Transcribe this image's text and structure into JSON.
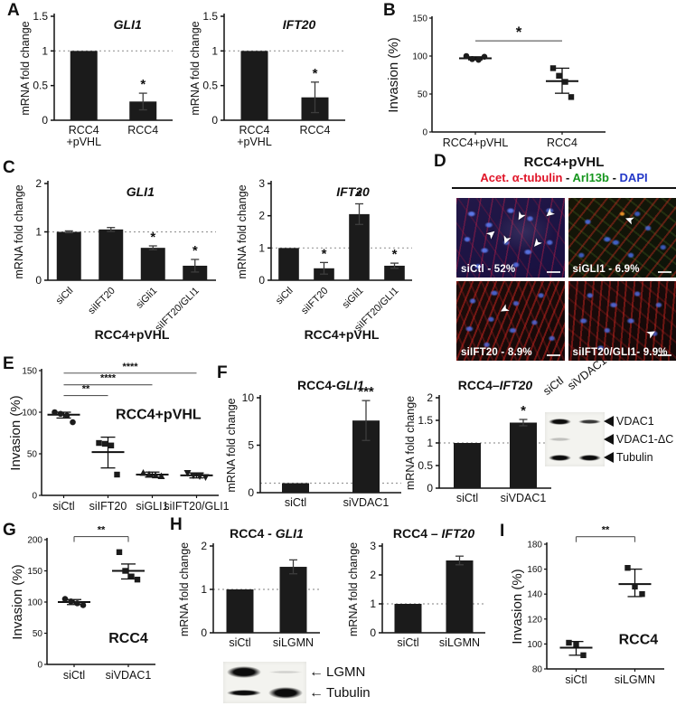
{
  "panels": {
    "A": "A",
    "B": "B",
    "C": "C",
    "D": "D",
    "E": "E",
    "F": "F",
    "G": "G",
    "H": "H",
    "I": "I"
  },
  "icons": {
    "arrowhead": "➤",
    "left_arrow": "←"
  },
  "panelD": {
    "title": "RCC4+pVHL",
    "separator": " - ",
    "legend": [
      {
        "text": "Acet. α-tubulin",
        "color": "#e01428"
      },
      {
        "text": "Arl13b",
        "color": "#15961e"
      },
      {
        "text": "DAPI",
        "color": "#2338c8"
      }
    ],
    "images": [
      {
        "label": "siCtl - 52%"
      },
      {
        "label": "siGLI1 - 6.9%"
      },
      {
        "label": "siIFT20 - 8.9%"
      },
      {
        "label": "siIFT20/GLI1- 9.9%"
      }
    ]
  },
  "blots": {
    "F": {
      "lanes": [
        "siCtl",
        "siVDAC1"
      ],
      "bands": [
        {
          "label": "VDAC1",
          "lanes": [
            "strong",
            "medium"
          ]
        },
        {
          "label": "VDAC1-ΔC",
          "lanes": [
            "faint",
            "none"
          ]
        },
        {
          "label": "Tubulin",
          "lanes": [
            "strong",
            "strong"
          ]
        }
      ]
    },
    "H": {
      "bands": [
        {
          "label": "LGMN",
          "lanes": [
            "heavy",
            "vfaint"
          ]
        },
        {
          "label": "Tubulin",
          "lanes": [
            "strong",
            "heavy"
          ]
        }
      ]
    }
  },
  "chart_data": [
    {
      "id": "A1",
      "panel": "A",
      "type": "bar",
      "title": "GLI1",
      "title_italic": true,
      "title_pos": "inner",
      "title_x": 0.62,
      "ylabel": "mRNA fold change",
      "ylim": [
        0,
        1.5
      ],
      "yticks": [
        0,
        0.5,
        1,
        1.5
      ],
      "ref_line": 1,
      "categories": [
        "RCC4\n+pVHL",
        "RCC4"
      ],
      "values": [
        1.0,
        0.27
      ],
      "errors": [
        0,
        0.12
      ],
      "sig": [
        "",
        "*"
      ]
    },
    {
      "id": "A2",
      "panel": "A",
      "type": "bar",
      "title": "IFT20",
      "title_italic": true,
      "title_pos": "inner",
      "title_x": 0.62,
      "ylabel": "mRNA fold change",
      "ylim": [
        0,
        1.5
      ],
      "yticks": [
        0,
        0.5,
        1,
        1.5
      ],
      "ref_line": 1,
      "categories": [
        "RCC4\n+pVHL",
        "RCC4"
      ],
      "values": [
        1.0,
        0.33
      ],
      "errors": [
        0,
        0.22
      ],
      "sig": [
        "",
        "*"
      ]
    },
    {
      "id": "B",
      "panel": "B",
      "type": "scatter",
      "ylabel": "Invasion (%)",
      "ylim": [
        0,
        150
      ],
      "yticks": [
        0,
        50,
        100,
        150
      ],
      "ml": 50,
      "categories": [
        "RCC4+pVHL",
        "RCC4"
      ],
      "groups": [
        {
          "marker": "circle",
          "points": [
            100,
            96,
            95,
            99
          ],
          "mean": 97,
          "lo": 95,
          "hi": 99
        },
        {
          "marker": "square",
          "points": [
            84,
            74,
            66,
            46
          ],
          "mean": 67,
          "lo": 51,
          "hi": 84
        }
      ],
      "brackets": [
        {
          "from": 0,
          "to": 1,
          "y": 120,
          "label": "*",
          "style": "line",
          "label_size": 17
        }
      ]
    },
    {
      "id": "C1",
      "panel": "C",
      "type": "bar",
      "title": "GLI1",
      "title_italic": true,
      "title_pos": "inner",
      "title_x": 0.55,
      "ylabel": "mRNA fold change",
      "ylim": [
        0,
        2
      ],
      "yticks": [
        0,
        1,
        2
      ],
      "ref_line": 1,
      "rotate_xticks": true,
      "xlabel": "RCC4+pVHL",
      "categories": [
        "siCtl",
        "siIFT20",
        "siGli1",
        "siIFT20/GLI1"
      ],
      "values": [
        1.0,
        1.05,
        0.67,
        0.3
      ],
      "errors": [
        0.02,
        0.04,
        0.04,
        0.13
      ],
      "sig": [
        "",
        "",
        "*",
        "*"
      ]
    },
    {
      "id": "C2",
      "panel": "C",
      "type": "bar",
      "title": "IFT20",
      "title_italic": true,
      "title_pos": "inner",
      "title_x": 0.58,
      "ylabel": "mRNA fold change",
      "ylim": [
        0,
        3
      ],
      "yticks": [
        0,
        1,
        2,
        3
      ],
      "ref_line": 1,
      "rotate_xticks": true,
      "xlabel": "RCC4+pVHL",
      "categories": [
        "siCtl",
        "siIFT20",
        "siGli1",
        "siIFT20/GLI1"
      ],
      "values": [
        1.0,
        0.37,
        2.05,
        0.45
      ],
      "errors": [
        0,
        0.18,
        0.32,
        0.08
      ],
      "sig": [
        "",
        "*",
        "*",
        "*"
      ]
    },
    {
      "id": "E",
      "panel": "E",
      "type": "scatter",
      "ylabel": "Invasion (%)",
      "ylim": [
        0,
        150
      ],
      "yticks": [
        0,
        50,
        100,
        150
      ],
      "ml": 36,
      "categories": [
        "siCtl",
        "siIFT20",
        "siGLI1",
        "siIFT20/GLI1"
      ],
      "groups": [
        {
          "marker": "circle",
          "points": [
            100,
            98,
            96,
            88
          ],
          "mean": 97,
          "lo": 93,
          "hi": 100
        },
        {
          "marker": "square",
          "points": [
            63,
            62,
            60,
            25
          ],
          "mean": 52,
          "lo": 33,
          "hi": 70
        },
        {
          "marker": "triangle",
          "points": [
            27,
            25,
            24,
            23
          ],
          "mean": 25,
          "lo": 22,
          "hi": 28
        },
        {
          "marker": "triangle-down",
          "points": [
            27,
            24,
            23,
            22
          ],
          "mean": 24,
          "lo": 21,
          "hi": 27
        }
      ],
      "brackets": [
        {
          "from": 0,
          "to": 1,
          "y": 120,
          "label": "**"
        },
        {
          "from": 0,
          "to": 2,
          "y": 133,
          "label": "****"
        },
        {
          "from": 0,
          "to": 3,
          "y": 147,
          "label": "****"
        }
      ],
      "inner_label": {
        "text": "RCC4+pVHL",
        "x": 0.66,
        "y": 92
      }
    },
    {
      "id": "F1",
      "panel": "F",
      "type": "bar",
      "title_parts": [
        {
          "text": "RCC4-"
        },
        {
          "text": "GLI1",
          "italic": true
        }
      ],
      "title_pos": "top",
      "ylabel": "mRNA fold change",
      "ylim": [
        0,
        10
      ],
      "yticks": [
        0,
        5,
        10
      ],
      "ref_line": 1,
      "categories": [
        "siCtl",
        "siVDAC1"
      ],
      "values": [
        1.0,
        7.6
      ],
      "errors": [
        0,
        2.1
      ],
      "sig": [
        "",
        "***"
      ]
    },
    {
      "id": "F2",
      "panel": "F",
      "type": "bar",
      "title_parts": [
        {
          "text": "RCC4–"
        },
        {
          "text": "IFT20",
          "italic": true
        }
      ],
      "title_pos": "top",
      "ylabel": "mRNA fold change",
      "ylim": [
        0,
        2
      ],
      "yticks": [
        0,
        0.5,
        1,
        1.5,
        2
      ],
      "ref_line": 1,
      "categories": [
        "siCtl",
        "siVDAC1"
      ],
      "values": [
        1.0,
        1.45
      ],
      "errors": [
        0,
        0.07
      ],
      "sig": [
        "",
        "*"
      ]
    },
    {
      "id": "G",
      "panel": "G",
      "type": "scatter",
      "ylabel": "Invasion (%)",
      "ylim": [
        0,
        200
      ],
      "yticks": [
        0,
        50,
        100,
        150,
        200
      ],
      "ml": 40,
      "categories": [
        "siCtl",
        "siVDAC1"
      ],
      "groups": [
        {
          "marker": "circle",
          "points": [
            105,
            101,
            98,
            95
          ],
          "mean": 100,
          "lo": 96,
          "hi": 104
        },
        {
          "marker": "square",
          "points": [
            180,
            150,
            141,
            136
          ],
          "mean": 150,
          "lo": 137,
          "hi": 161
        }
      ],
      "brackets": [
        {
          "from": 0,
          "to": 1,
          "y": 205,
          "label": "**",
          "style": "bracket"
        }
      ],
      "inner_label": {
        "text": "RCC4",
        "x": 0.75,
        "y": 35
      }
    },
    {
      "id": "H1",
      "panel": "H",
      "type": "bar",
      "title_parts": [
        {
          "text": "RCC4 - "
        },
        {
          "text": "GLI1",
          "italic": true
        }
      ],
      "title_pos": "top",
      "ylabel": "mRNA fold change",
      "ylim": [
        0,
        2
      ],
      "yticks": [
        0,
        1,
        2
      ],
      "ref_line": 1,
      "categories": [
        "siCtl",
        "siLGMN"
      ],
      "values": [
        1.0,
        1.52
      ],
      "errors": [
        0,
        0.16
      ],
      "sig": [
        "",
        ""
      ]
    },
    {
      "id": "H2",
      "panel": "H",
      "type": "bar",
      "title_parts": [
        {
          "text": "RCC4 – "
        },
        {
          "text": "IFT20",
          "italic": true
        }
      ],
      "title_pos": "top",
      "ylabel": "mRNA fold change",
      "ylim": [
        0,
        3
      ],
      "yticks": [
        0,
        1,
        2,
        3
      ],
      "ref_line": 1,
      "categories": [
        "siCtl",
        "siLGMN"
      ],
      "values": [
        1.0,
        2.5
      ],
      "errors": [
        0,
        0.15
      ],
      "sig": [
        "",
        ""
      ]
    },
    {
      "id": "I",
      "panel": "I",
      "type": "scatter",
      "ylabel": "Invasion (%)",
      "ylim": [
        80,
        180
      ],
      "yticks": [
        80,
        100,
        120,
        140,
        160,
        180
      ],
      "ml": 40,
      "categories": [
        "siCtl",
        "siLGMN"
      ],
      "groups": [
        {
          "marker": "square",
          "points": [
            101,
            100,
            91
          ],
          "mean": 97,
          "lo": 91,
          "hi": 102
        },
        {
          "marker": "square",
          "points": [
            161,
            146,
            140
          ],
          "mean": 148,
          "lo": 138,
          "hi": 160
        }
      ],
      "brackets": [
        {
          "from": 0,
          "to": 1,
          "y": 186,
          "label": "**",
          "style": "bracket"
        }
      ],
      "inner_label": {
        "text": "RCC4",
        "x": 0.78,
        "y": 100
      }
    }
  ]
}
